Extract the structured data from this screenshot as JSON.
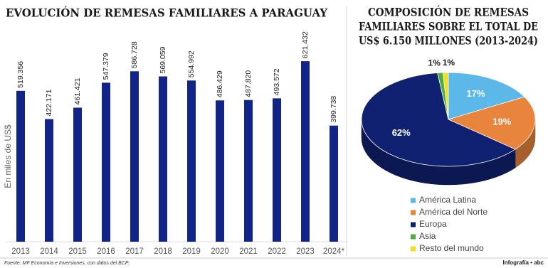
{
  "chart_data": [
    {
      "type": "bar",
      "title": "EVOLUCIÓN DE REMESAS FAMILIARES A PARAGUAY",
      "y_label": "En miles de US$",
      "categories": [
        "2013",
        "2014",
        "2015",
        "2016",
        "2017",
        "2018",
        "2019",
        "2020",
        "2021",
        "2022",
        "2023",
        "2024*"
      ],
      "values": [
        519356,
        422171,
        461421,
        547379,
        586728,
        569059,
        554992,
        486429,
        487820,
        493572,
        621432,
        399738
      ],
      "value_labels": [
        "519.356",
        "422.171",
        "461.421",
        "547.379",
        "586.728",
        "569.059",
        "554.992",
        "486.429",
        "487.820",
        "493.572",
        "621.432",
        "399.738"
      ],
      "color": "#10248a",
      "ylim": [
        0,
        700000
      ]
    },
    {
      "type": "pie",
      "title": [
        "COMPOSICIÓN DE REMESAS",
        "FAMILIARES SOBRE EL TOTAL DE",
        "US$ 6.150 MILLONES (2013-2024)"
      ],
      "categories": [
        "América Latina",
        "América del Norte",
        "Europa",
        "Asia",
        "Resto del mundo"
      ],
      "values": [
        17,
        19,
        62,
        1,
        1
      ],
      "value_labels": [
        "17%",
        "19%",
        "62%",
        "1%",
        "1%"
      ],
      "colors": [
        "#5bb8e8",
        "#e8843c",
        "#0f2170",
        "#4caf3a",
        "#f0e020"
      ]
    }
  ],
  "source": "Fuente: MF Economía e Inversiones, con datos del BCP.",
  "credit": "Infografía • abc"
}
